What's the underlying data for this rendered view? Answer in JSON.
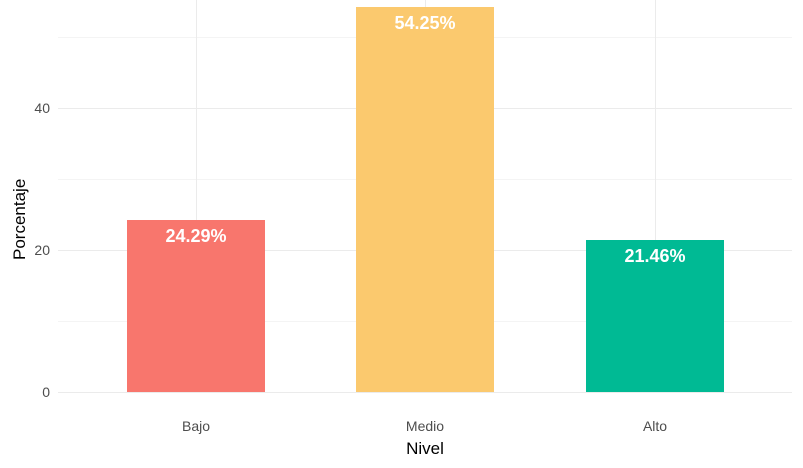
{
  "chart_data": {
    "type": "bar",
    "title": "",
    "xlabel": "Nivel",
    "ylabel": "Porcentaje",
    "categories": [
      "Bajo",
      "Medio",
      "Alto"
    ],
    "values": [
      24.29,
      54.25,
      21.46
    ],
    "value_labels": [
      "24.29%",
      "54.25%",
      "21.46%"
    ],
    "colors": [
      "#f8766d",
      "#fbc96e",
      "#00ba94"
    ],
    "ylim": [
      0,
      55.2
    ],
    "yticks": [
      0,
      20,
      40
    ],
    "yticks_minor": [
      10,
      30,
      50
    ],
    "ytick_labels": [
      "0",
      "20",
      "40"
    ],
    "grid": true,
    "legend": "none"
  }
}
